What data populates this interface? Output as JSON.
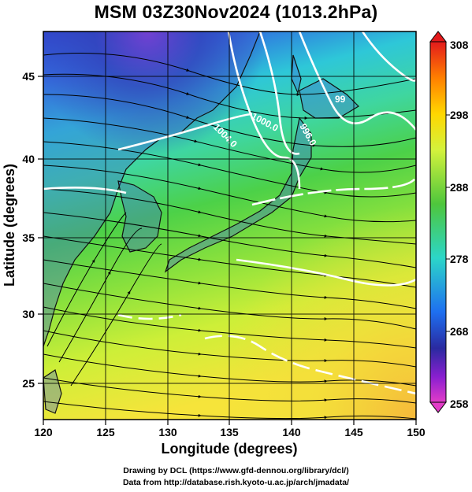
{
  "title": "MSM 03Z30Nov2024 (1013.2hPa)",
  "axes": {
    "xlabel": "Longitude (degrees)",
    "ylabel": "Latitude  (degrees)",
    "xlim": [
      120,
      150
    ],
    "ylim": [
      22.5,
      47.5
    ],
    "xticks": [
      "120",
      "125",
      "130",
      "135",
      "140",
      "145",
      "150"
    ],
    "yticks": [
      "25",
      "30",
      "35",
      "40",
      "45"
    ]
  },
  "colorbar": {
    "range": [
      258,
      308
    ],
    "labels": [
      "308",
      "298",
      "288",
      "278",
      "268",
      "258"
    ],
    "colors": [
      "#e31a1c",
      "#ff7f00",
      "#ffd700",
      "#d4f23c",
      "#4ec63c",
      "#2cd6c8",
      "#1e6ff0",
      "#2a2aa0",
      "#8a1fd0",
      "#e23cc8"
    ]
  },
  "contours": [
    {
      "label": "1000.0"
    },
    {
      "label": "1004.0"
    },
    {
      "label": "996.0"
    },
    {
      "label": "99"
    }
  ],
  "credits": {
    "line1": "Drawing by DCL (https://www.gfd-dennou.org/library/dcl/)",
    "line2": "Data from http://database.rish.kyoto-u.ac.jp/arch/jmadata/"
  }
}
